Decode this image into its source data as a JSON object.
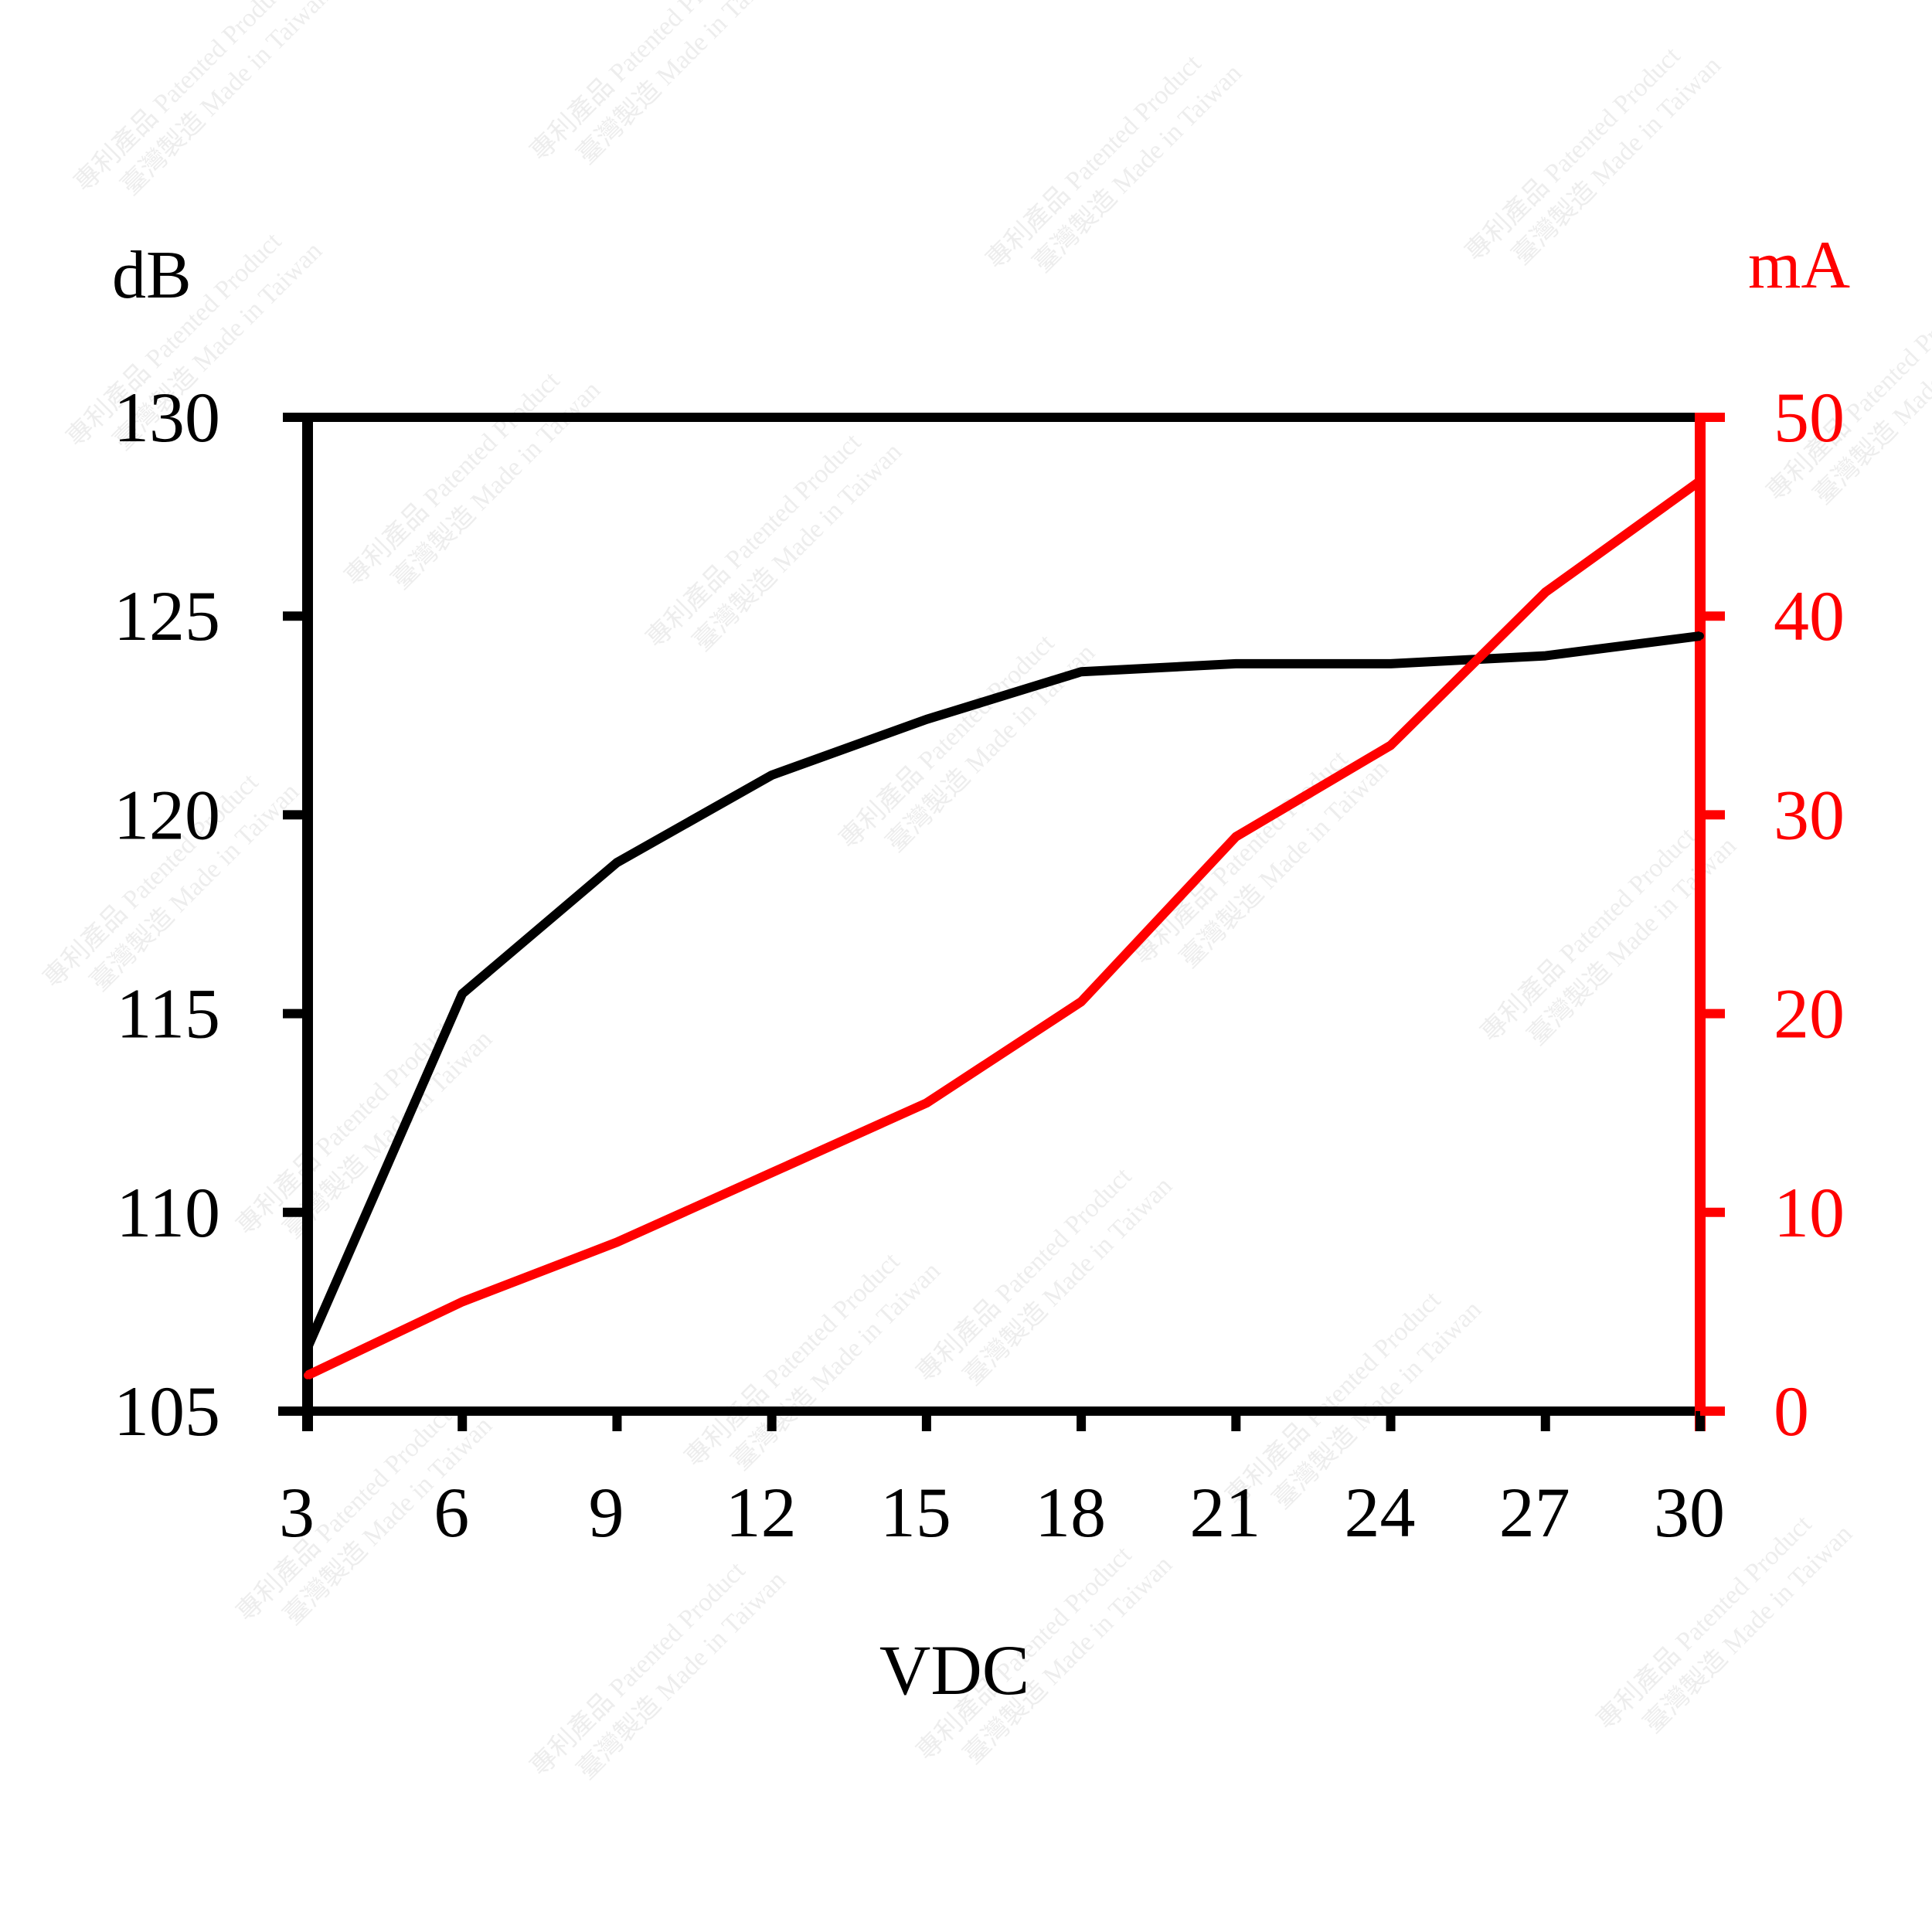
{
  "chart_data": {
    "type": "line",
    "title": "",
    "xlabel": "VDC",
    "ylabel_left": "dB",
    "ylabel_right": "mA",
    "x_ticks": [
      "3",
      "6",
      "9",
      "12",
      "15",
      "18",
      "21",
      "24",
      "27",
      "30"
    ],
    "y_left_ticks": [
      "105",
      "110",
      "115",
      "120",
      "125",
      "130"
    ],
    "y_right_ticks": [
      "0",
      "10",
      "20",
      "30",
      "40",
      "50"
    ],
    "xlim": [
      3,
      30
    ],
    "ylim_left": [
      105,
      130
    ],
    "ylim_right": [
      0,
      50
    ],
    "grid": false,
    "colors": {
      "left_axis": "#000000",
      "right_axis": "#ff0000"
    },
    "x": [
      3,
      6,
      9,
      12,
      15,
      18,
      21,
      24,
      27,
      30
    ],
    "series": [
      {
        "axis": "left",
        "color": "#000000",
        "values": [
          106.6,
          115.5,
          118.8,
          121.0,
          122.4,
          123.6,
          123.8,
          123.8,
          124.0,
          124.5
        ]
      },
      {
        "axis": "right",
        "color": "#ff0000",
        "values": [
          1.8,
          5.5,
          8.5,
          12.0,
          15.5,
          20.6,
          28.9,
          33.5,
          41.2,
          46.8
        ]
      }
    ]
  },
  "watermark": {
    "line1": "專利產品 Patented Product",
    "line2": "臺灣製造 Made in Taiwan"
  }
}
